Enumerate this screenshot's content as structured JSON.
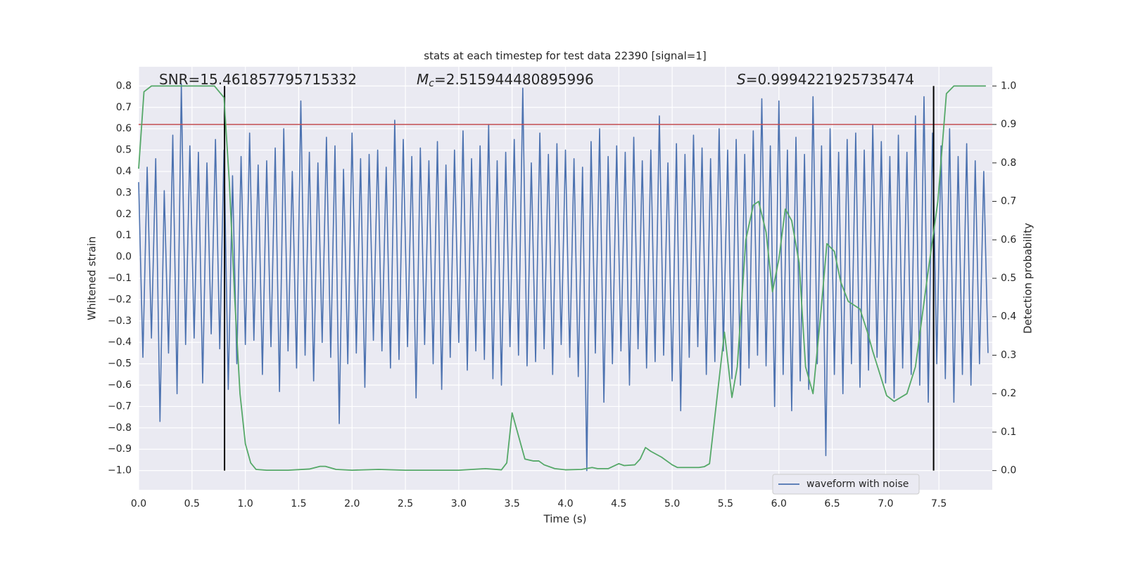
{
  "chart_data": {
    "type": "line",
    "title": "stats at each timestep for test data 22390 [signal=1]",
    "xlabel": "Time (s)",
    "ylabel": "Whitened strain",
    "y2label": "Detection probability",
    "annotations": [
      {
        "text": "SNR=15.461857795715332"
      },
      {
        "symbol": "M",
        "subscript": "c",
        "text": "=2.515944480895996"
      },
      {
        "symbol": "S",
        "text": "=0.9994221925735474"
      }
    ],
    "grid": true,
    "legend": "lower right",
    "xlim": [
      0,
      8.0
    ],
    "ylim": [
      -1.09,
      0.89
    ],
    "y2lim": [
      -0.05,
      1.05
    ],
    "xticks": [
      {
        "value": 0,
        "label": "0.0"
      },
      {
        "value": 0.5,
        "label": "0.5"
      },
      {
        "value": 1,
        "label": "1.0"
      },
      {
        "value": 1.5,
        "label": "1.5"
      },
      {
        "value": 2,
        "label": "2.0"
      },
      {
        "value": 2.5,
        "label": "2.5"
      },
      {
        "value": 3,
        "label": "3.0"
      },
      {
        "value": 3.5,
        "label": "3.5"
      },
      {
        "value": 4,
        "label": "4.0"
      },
      {
        "value": 4.5,
        "label": "4.5"
      },
      {
        "value": 5,
        "label": "5.0"
      },
      {
        "value": 5.5,
        "label": "5.5"
      },
      {
        "value": 6,
        "label": "6.0"
      },
      {
        "value": 6.5,
        "label": "6.5"
      },
      {
        "value": 7,
        "label": "7.0"
      },
      {
        "value": 7.5,
        "label": "7.5"
      }
    ],
    "yticks": [
      {
        "value": -1,
        "label": "−1.0"
      },
      {
        "value": -0.9,
        "label": "−0.9"
      },
      {
        "value": -0.8,
        "label": "−0.8"
      },
      {
        "value": -0.7,
        "label": "−0.7"
      },
      {
        "value": -0.6,
        "label": "−0.6"
      },
      {
        "value": -0.5,
        "label": "−0.5"
      },
      {
        "value": -0.4,
        "label": "−0.4"
      },
      {
        "value": -0.3,
        "label": "−0.3"
      },
      {
        "value": -0.2,
        "label": "−0.2"
      },
      {
        "value": -0.1,
        "label": "−0.1"
      },
      {
        "value": 0,
        "label": "0.0"
      },
      {
        "value": 0.1,
        "label": "0.1"
      },
      {
        "value": 0.2,
        "label": "0.2"
      },
      {
        "value": 0.3,
        "label": "0.3"
      },
      {
        "value": 0.4,
        "label": "0.4"
      },
      {
        "value": 0.5,
        "label": "0.5"
      },
      {
        "value": 0.6,
        "label": "0.6"
      },
      {
        "value": 0.7,
        "label": "0.7"
      },
      {
        "value": 0.8,
        "label": "0.8"
      }
    ],
    "y2ticks": [
      {
        "value": 0,
        "label": "0.0"
      },
      {
        "value": 0.1,
        "label": "0.1"
      },
      {
        "value": 0.2,
        "label": "0.2"
      },
      {
        "value": 0.3,
        "label": "0.3"
      },
      {
        "value": 0.4,
        "label": "0.4"
      },
      {
        "value": 0.5,
        "label": "0.5"
      },
      {
        "value": 0.6,
        "label": "0.6"
      },
      {
        "value": 0.7,
        "label": "0.7"
      },
      {
        "value": 0.8,
        "label": "0.8"
      },
      {
        "value": 0.9,
        "label": "0.9"
      },
      {
        "value": 1,
        "label": "1.0"
      }
    ],
    "hlines": {
      "y": 0.9,
      "axis": "y2",
      "color": "#c44e52"
    },
    "vlines": {
      "x": [
        0.805,
        7.45
      ],
      "ymin": 0,
      "ymax": 1,
      "axis": "y2",
      "color": "#000000"
    },
    "series": [
      {
        "name": "waveform with noise",
        "color": "#4c72b0",
        "x": [
          0,
          0.04,
          0.08,
          0.12,
          0.16,
          0.2,
          0.24,
          0.28,
          0.32,
          0.36,
          0.4,
          0.44,
          0.48,
          0.52,
          0.56,
          0.6,
          0.64,
          0.68,
          0.72,
          0.76,
          0.8,
          0.84,
          0.88,
          0.92,
          0.96,
          1,
          1.04,
          1.08,
          1.12,
          1.16,
          1.2,
          1.24,
          1.28,
          1.32,
          1.36,
          1.4,
          1.44,
          1.48,
          1.52,
          1.56,
          1.6,
          1.64,
          1.68,
          1.72,
          1.76,
          1.8,
          1.84,
          1.88,
          1.92,
          1.96,
          2,
          2.04,
          2.08,
          2.12,
          2.16,
          2.2,
          2.24,
          2.28,
          2.32,
          2.36,
          2.4,
          2.44,
          2.48,
          2.52,
          2.56,
          2.6,
          2.64,
          2.68,
          2.72,
          2.76,
          2.8,
          2.84,
          2.88,
          2.92,
          2.96,
          3,
          3.04,
          3.08,
          3.12,
          3.16,
          3.2,
          3.24,
          3.28,
          3.32,
          3.36,
          3.4,
          3.44,
          3.48,
          3.52,
          3.56,
          3.6,
          3.64,
          3.68,
          3.72,
          3.76,
          3.8,
          3.84,
          3.88,
          3.92,
          3.96,
          4,
          4.04,
          4.08,
          4.12,
          4.16,
          4.2,
          4.24,
          4.28,
          4.32,
          4.36,
          4.4,
          4.44,
          4.48,
          4.52,
          4.56,
          4.6,
          4.64,
          4.68,
          4.72,
          4.76,
          4.8,
          4.84,
          4.88,
          4.92,
          4.96,
          5,
          5.04,
          5.08,
          5.12,
          5.16,
          5.2,
          5.24,
          5.28,
          5.32,
          5.36,
          5.4,
          5.44,
          5.48,
          5.52,
          5.56,
          5.6,
          5.64,
          5.68,
          5.72,
          5.76,
          5.8,
          5.84,
          5.88,
          5.92,
          5.96,
          6,
          6.04,
          6.08,
          6.12,
          6.16,
          6.2,
          6.24,
          6.28,
          6.32,
          6.36,
          6.4,
          6.44,
          6.48,
          6.52,
          6.56,
          6.6,
          6.64,
          6.68,
          6.72,
          6.76,
          6.8,
          6.84,
          6.88,
          6.92,
          6.96,
          7,
          7.04,
          7.08,
          7.12,
          7.16,
          7.2,
          7.24,
          7.28,
          7.32,
          7.36,
          7.4,
          7.44,
          7.48,
          7.52,
          7.56,
          7.6,
          7.64,
          7.68,
          7.72,
          7.76,
          7.8,
          7.84,
          7.88,
          7.92,
          7.96
        ],
        "values": [
          0.35,
          -0.47,
          0.42,
          -0.38,
          0.46,
          -0.77,
          0.31,
          -0.45,
          0.57,
          -0.64,
          0.81,
          -0.41,
          0.52,
          -0.38,
          0.49,
          -0.59,
          0.44,
          -0.36,
          0.55,
          -0.43,
          0.5,
          -0.62,
          0.38,
          -0.5,
          0.47,
          -0.41,
          0.58,
          -0.39,
          0.43,
          -0.55,
          0.45,
          -0.42,
          0.51,
          -0.63,
          0.6,
          -0.44,
          0.4,
          -0.52,
          0.73,
          -0.46,
          0.49,
          -0.58,
          0.44,
          -0.4,
          0.56,
          -0.47,
          0.52,
          -0.78,
          0.41,
          -0.5,
          0.58,
          -0.45,
          0.46,
          -0.61,
          0.48,
          -0.39,
          0.5,
          -0.44,
          0.42,
          -0.52,
          0.64,
          -0.48,
          0.55,
          -0.42,
          0.47,
          -0.66,
          0.51,
          -0.41,
          0.45,
          -0.5,
          0.54,
          -0.62,
          0.43,
          -0.47,
          0.5,
          -0.4,
          0.59,
          -0.53,
          0.46,
          -0.44,
          0.52,
          -0.48,
          0.62,
          -0.57,
          0.45,
          -0.6,
          0.49,
          -0.42,
          0.55,
          -0.46,
          0.79,
          -0.51,
          0.44,
          -0.49,
          0.58,
          -0.43,
          0.48,
          -0.55,
          0.53,
          -0.41,
          0.5,
          -0.47,
          0.46,
          -0.56,
          0.42,
          -1.0,
          0.54,
          -0.45,
          0.6,
          -0.68,
          0.47,
          -0.5,
          0.52,
          -0.44,
          0.49,
          -0.6,
          0.56,
          -0.43,
          0.45,
          -0.52,
          0.5,
          -0.49,
          0.66,
          -0.46,
          0.44,
          -0.58,
          0.53,
          -0.72,
          0.48,
          -0.47,
          0.57,
          -0.42,
          0.51,
          -0.55,
          0.46,
          -0.49,
          0.6,
          -0.44,
          0.5,
          -0.57,
          0.55,
          -0.6,
          0.48,
          -0.52,
          0.59,
          -0.46,
          0.74,
          -0.51,
          0.52,
          -0.7,
          0.73,
          -0.55,
          0.5,
          -0.72,
          0.56,
          -0.58,
          0.48,
          -0.62,
          0.75,
          -0.5,
          0.52,
          -0.93,
          0.6,
          -0.55,
          0.49,
          -0.64,
          0.55,
          -0.5,
          0.58,
          -0.61,
          0.5,
          -0.53,
          0.62,
          -0.47,
          0.54,
          -0.59,
          0.47,
          -0.66,
          0.57,
          -0.52,
          0.49,
          -0.55,
          0.66,
          -0.6,
          0.75,
          -0.68,
          0.58,
          -0.5,
          0.52,
          -0.57,
          0.6,
          -0.68,
          0.47,
          -0.55,
          0.53,
          -0.6,
          0.45,
          -0.5,
          0.4,
          -0.45
        ]
      },
      {
        "color": "#55a868",
        "axis": "y2",
        "x": [
          0,
          0.05,
          0.12,
          0.71,
          0.8,
          0.85,
          0.9,
          0.95,
          1.0,
          1.05,
          1.1,
          1.2,
          1.4,
          1.6,
          1.7,
          1.75,
          1.85,
          2.0,
          2.25,
          2.5,
          3.0,
          3.25,
          3.4,
          3.45,
          3.5,
          3.55,
          3.62,
          3.7,
          3.75,
          3.8,
          3.9,
          4.0,
          4.15,
          4.25,
          4.3,
          4.4,
          4.5,
          4.55,
          4.65,
          4.7,
          4.75,
          4.8,
          4.9,
          5.0,
          5.05,
          5.15,
          5.25,
          5.3,
          5.35,
          5.49,
          5.56,
          5.61,
          5.69,
          5.76,
          5.81,
          5.88,
          5.94,
          6.0,
          6.06,
          6.12,
          6.19,
          6.25,
          6.32,
          6.39,
          6.45,
          6.52,
          6.58,
          6.65,
          6.76,
          6.83,
          6.88,
          7.01,
          7.08,
          7.2,
          7.28,
          7.39,
          7.49,
          7.57,
          7.64,
          7.94
        ],
        "values": [
          0.785,
          0.985,
          1.0,
          1.0,
          0.97,
          0.75,
          0.45,
          0.2,
          0.07,
          0.02,
          0.003,
          0.001,
          0.001,
          0.004,
          0.011,
          0.011,
          0.003,
          0.001,
          0.003,
          0.001,
          0.001,
          0.005,
          0.002,
          0.02,
          0.15,
          0.1,
          0.03,
          0.025,
          0.025,
          0.015,
          0.005,
          0.002,
          0.003,
          0.008,
          0.005,
          0.005,
          0.018,
          0.013,
          0.015,
          0.03,
          0.06,
          0.05,
          0.035,
          0.015,
          0.008,
          0.008,
          0.008,
          0.01,
          0.018,
          0.36,
          0.19,
          0.27,
          0.6,
          0.69,
          0.7,
          0.62,
          0.465,
          0.55,
          0.68,
          0.65,
          0.54,
          0.27,
          0.2,
          0.4,
          0.59,
          0.57,
          0.49,
          0.44,
          0.42,
          0.36,
          0.31,
          0.195,
          0.18,
          0.2,
          0.27,
          0.5,
          0.7,
          0.98,
          1.0,
          1.0
        ]
      }
    ]
  }
}
